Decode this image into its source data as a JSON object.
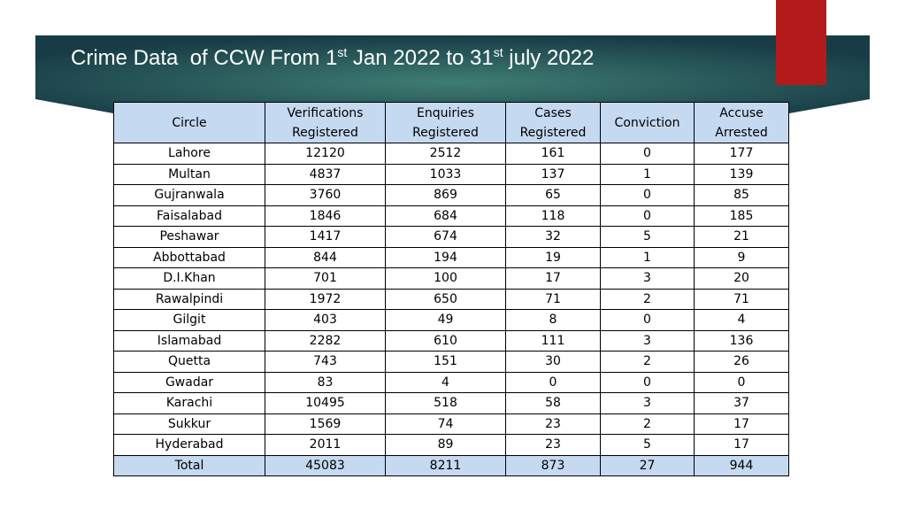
{
  "title": [
    "Crime Data  of CCW From 1",
    "st",
    " Jan 2022 to 31",
    "st",
    " july 2022"
  ],
  "table": {
    "columns": [
      "Circle",
      "Verifications Registered",
      "Enquiries Registered",
      "Cases Registered",
      "Conviction",
      "Accuse Arrested"
    ],
    "rows": [
      [
        "Lahore",
        12120,
        2512,
        161,
        0,
        177
      ],
      [
        "Multan",
        4837,
        1033,
        137,
        1,
        139
      ],
      [
        "Gujranwala",
        3760,
        869,
        65,
        0,
        85
      ],
      [
        "Faisalabad",
        1846,
        684,
        118,
        0,
        185
      ],
      [
        "Peshawar",
        1417,
        674,
        32,
        5,
        21
      ],
      [
        "Abbottabad",
        844,
        194,
        19,
        1,
        9
      ],
      [
        "D.I.Khan",
        701,
        100,
        17,
        3,
        20
      ],
      [
        "Rawalpindi",
        1972,
        650,
        71,
        2,
        71
      ],
      [
        "Gilgit",
        403,
        49,
        8,
        0,
        4
      ],
      [
        "Islamabad",
        2282,
        610,
        111,
        3,
        136
      ],
      [
        "Quetta",
        743,
        151,
        30,
        2,
        26
      ],
      [
        "Gwadar",
        83,
        4,
        0,
        0,
        0
      ],
      [
        "Karachi",
        10495,
        518,
        58,
        3,
        37
      ],
      [
        "Sukkur",
        1569,
        74,
        23,
        2,
        17
      ],
      [
        "Hyderabad",
        2011,
        89,
        23,
        5,
        17
      ]
    ],
    "total": [
      "Total",
      45083,
      8211,
      873,
      27,
      944
    ]
  }
}
